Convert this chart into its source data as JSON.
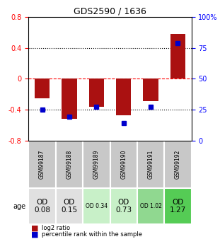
{
  "title": "GDS2590 / 1636",
  "samples": [
    "GSM99187",
    "GSM99188",
    "GSM99189",
    "GSM99190",
    "GSM99191",
    "GSM99192"
  ],
  "log2_ratio": [
    -0.25,
    -0.52,
    -0.36,
    -0.47,
    -0.29,
    0.58
  ],
  "percentile_rank": [
    25,
    19,
    27,
    14,
    27,
    79
  ],
  "age_labels": [
    "OD\n0.08",
    "OD\n0.15",
    "OD 0.34",
    "OD\n0.73",
    "OD 1.02",
    "OD\n1.27"
  ],
  "age_fontsize_small": [
    false,
    false,
    true,
    false,
    true,
    false
  ],
  "cell_colors": [
    "#e0e0e0",
    "#e0e0e0",
    "#c8f0c8",
    "#c8f0c8",
    "#90d890",
    "#55cc55"
  ],
  "bar_color": "#aa1111",
  "dot_color": "#0000cc",
  "ylim_left": [
    -0.8,
    0.8
  ],
  "ylim_right": [
    0,
    100
  ],
  "yticks_left": [
    -0.8,
    -0.4,
    0.0,
    0.4,
    0.8
  ],
  "yticks_right": [
    0,
    25,
    50,
    75,
    100
  ],
  "ytick_labels_left": [
    "-0.8",
    "-0.4",
    "0",
    "0.4",
    "0.8"
  ],
  "ytick_labels_right": [
    "0",
    "25",
    "50",
    "75",
    "100%"
  ],
  "dotted_lines": [
    -0.4,
    0.0,
    0.4
  ],
  "legend_red": "log2 ratio",
  "legend_blue": "percentile rank within the sample",
  "age_row_label": "age",
  "sample_bg_color": "#c8c8c8"
}
